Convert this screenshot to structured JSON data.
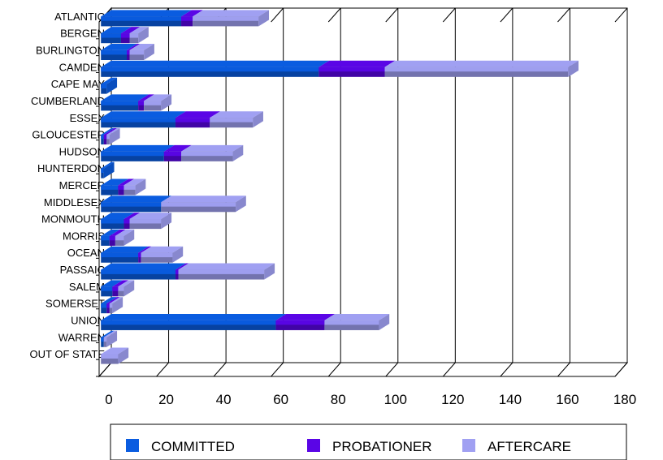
{
  "chart_data": {
    "type": "bar",
    "orientation": "horizontal",
    "stacked": true,
    "three_d": true,
    "categories": [
      "ATLANTIC",
      "BERGEN",
      "BURLINGTON",
      "CAMDEN",
      "CAPE MAY",
      "CUMBERLAND",
      "ESSEX",
      "GLOUCESTER",
      "HUDSON",
      "HUNTERDON",
      "MERCER",
      "MIDDLESEX",
      "MONMOUTH",
      "MORRIS",
      "OCEAN",
      "PASSAIC",
      "SALEM",
      "SOMERSET",
      "UNION",
      "WARREN",
      "OUT OF STATE"
    ],
    "series": [
      {
        "name": "COMMITTED",
        "color": "#0a5ce0",
        "values": [
          28,
          7,
          9,
          76,
          2,
          13,
          26,
          1,
          22,
          1,
          6,
          21,
          8,
          3,
          13,
          26,
          4,
          2,
          61,
          1,
          0
        ]
      },
      {
        "name": "PROBATIONER",
        "color": "#5a05e6",
        "values": [
          4,
          3,
          1,
          23,
          0,
          2,
          12,
          1,
          6,
          0,
          2,
          0,
          2,
          2,
          1,
          1,
          2,
          1,
          17,
          0,
          0
        ]
      },
      {
        "name": "AFTERCARE",
        "color": "#a0a0f2",
        "values": [
          23,
          3,
          5,
          64,
          0,
          6,
          15,
          1,
          18,
          0,
          4,
          26,
          11,
          3,
          11,
          30,
          2,
          1,
          19,
          1,
          6
        ]
      }
    ],
    "xlim": [
      0,
      180
    ],
    "x_ticks": [
      "0",
      "20",
      "40",
      "60",
      "80",
      "100",
      "120",
      "140",
      "160",
      "180"
    ],
    "title": "",
    "xlabel": "",
    "ylabel": "",
    "grid": true,
    "legend_position": "bottom"
  }
}
